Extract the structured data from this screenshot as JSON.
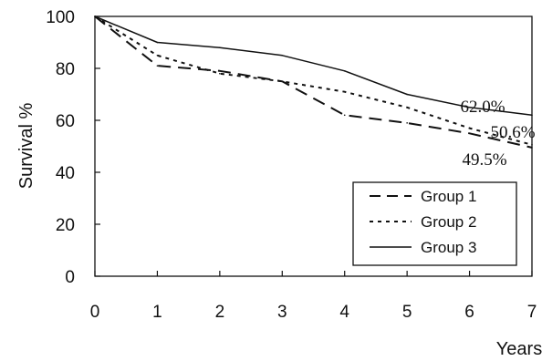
{
  "chart_data": {
    "type": "line",
    "title": "",
    "xlabel": "Years",
    "ylabel": "Survival %",
    "xlim": [
      0,
      7
    ],
    "ylim": [
      0,
      100
    ],
    "x_ticks": [
      "0",
      "1",
      "2",
      "3",
      "4",
      "5",
      "6",
      "7"
    ],
    "y_ticks": [
      "0",
      "20",
      "40",
      "60",
      "80",
      "100"
    ],
    "grid": false,
    "legend_position": "bottom-right",
    "series": [
      {
        "name": "Group 1",
        "style": "long-dash",
        "color": "#111111",
        "x": [
          0,
          1,
          2,
          3,
          4,
          5,
          6,
          7
        ],
        "y": [
          100,
          81,
          79,
          75,
          62,
          59,
          55,
          49.5
        ]
      },
      {
        "name": "Group 2",
        "style": "dotted",
        "color": "#111111",
        "x": [
          0,
          1,
          2,
          3,
          4,
          5,
          6,
          7
        ],
        "y": [
          100,
          85,
          78,
          75,
          71,
          65,
          57,
          50.6
        ]
      },
      {
        "name": "Group 3",
        "style": "solid",
        "color": "#111111",
        "x": [
          0,
          1,
          2,
          3,
          4,
          5,
          6,
          7
        ],
        "y": [
          100,
          90,
          88,
          85,
          79,
          70,
          65,
          62.0
        ]
      }
    ],
    "annotations": [
      {
        "text": "62.0%",
        "series": "Group 3"
      },
      {
        "text": "50.6%",
        "series": "Group 2"
      },
      {
        "text": "49.5%",
        "series": "Group 1"
      }
    ]
  }
}
